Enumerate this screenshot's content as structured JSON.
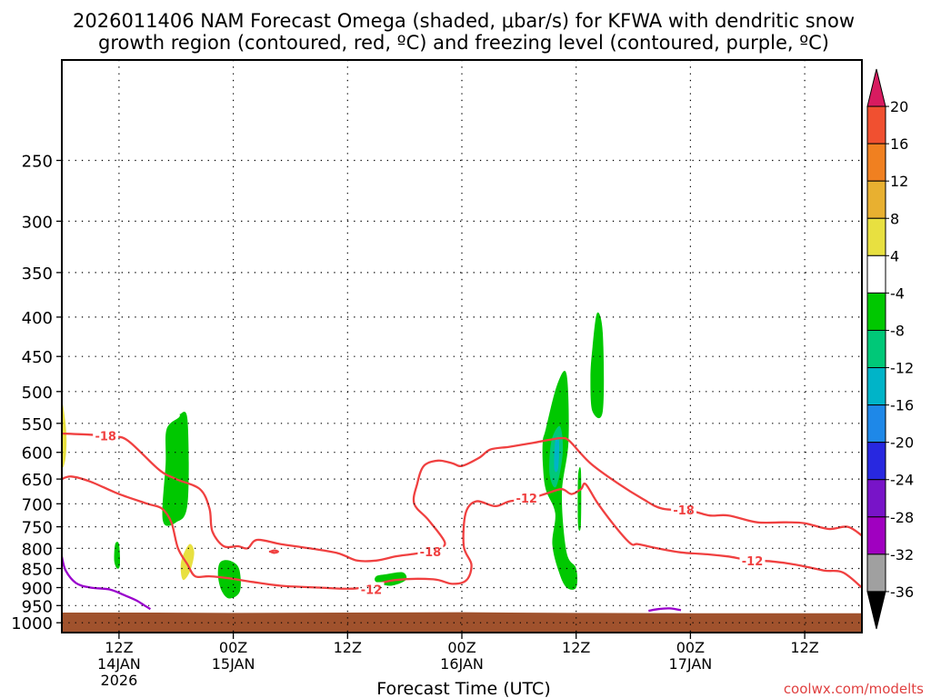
{
  "chart_data": {
    "type": "heatmap",
    "title_line1": "2026011406 NAM Forecast Omega (shaded, μbar/s) for KFWA with dendritic snow",
    "title_line2": "growth region (contoured, red, ºC) and freezing level (contoured, purple, ºC)",
    "xlabel": "Forecast Time (UTC)",
    "watermark": "coolwx.com/modelts",
    "x_unit": "hours_from_2026-01-14T06Z",
    "xlim": [
      0,
      84
    ],
    "y_scale": "log-pressure",
    "ylim": [
      1030,
      185
    ],
    "y_ticks": [
      250,
      300,
      350,
      400,
      450,
      500,
      550,
      600,
      650,
      700,
      750,
      800,
      850,
      900,
      950,
      1000
    ],
    "x_ticks": [
      {
        "x": 6,
        "l1": "12Z",
        "l2": "14JAN",
        "l3": "2026"
      },
      {
        "x": 18,
        "l1": "00Z",
        "l2": "15JAN",
        "l3": ""
      },
      {
        "x": 30,
        "l1": "12Z",
        "l2": "",
        "l3": ""
      },
      {
        "x": 42,
        "l1": "00Z",
        "l2": "16JAN",
        "l3": ""
      },
      {
        "x": 54,
        "l1": "12Z",
        "l2": "",
        "l3": ""
      },
      {
        "x": 66,
        "l1": "00Z",
        "l2": "17JAN",
        "l3": ""
      },
      {
        "x": 78,
        "l1": "12Z",
        "l2": "",
        "l3": ""
      }
    ],
    "colorbar": {
      "labels": [
        "20",
        "16",
        "12",
        "8",
        "4",
        "-4",
        "-8",
        "-12",
        "-16",
        "-20",
        "-24",
        "-28",
        "-32",
        "-36"
      ],
      "bins": [
        {
          "color": "#d81b60"
        },
        {
          "color": "#f05030"
        },
        {
          "color": "#f08020"
        },
        {
          "color": "#e8b030"
        },
        {
          "color": "#e8e040"
        },
        {
          "color": "#ffffff"
        },
        {
          "color": "#00c800"
        },
        {
          "color": "#00c878"
        },
        {
          "color": "#00b4c8"
        },
        {
          "color": "#1e88e8"
        },
        {
          "color": "#2828e0"
        },
        {
          "color": "#7814c8"
        },
        {
          "color": "#a000c0"
        },
        {
          "color": "#a0a0a0"
        },
        {
          "color": "#000000"
        }
      ]
    },
    "ground": {
      "color": "#a0522d",
      "pressure": [
        970,
        970,
        971,
        970,
        969,
        970,
        971,
        972,
        972,
        972
      ],
      "x": [
        0,
        10,
        18,
        30,
        42,
        47,
        55,
        66,
        76,
        84
      ]
    },
    "omega_regions": [
      {
        "value": 6,
        "color": "#e8e040",
        "x": [
          0.0,
          0.35,
          0.5,
          0.35,
          0.0
        ],
        "p": [
          520,
          545,
          580,
          615,
          620
        ]
      },
      {
        "value": 6,
        "color": "#e8e040",
        "x": [
          12.6,
          13.4,
          13.9,
          13.5,
          12.8,
          12.5
        ],
        "p": [
          825,
          790,
          810,
          855,
          880,
          860
        ]
      },
      {
        "value": -6,
        "color": "#00c800",
        "x": [
          11.0,
          12.3,
          12.4,
          13.2,
          13.2,
          12.0,
          10.6,
          10.9
        ],
        "p": [
          560,
          540,
          535,
          545,
          700,
          740,
          735,
          620
        ]
      },
      {
        "value": -6,
        "color": "#00c800",
        "x": [
          5.6,
          6.0,
          6.1,
          5.8,
          5.5
        ],
        "p": [
          790,
          790,
          840,
          850,
          830
        ]
      },
      {
        "value": -6,
        "color": "#00c800",
        "x": [
          16.6,
          17.6,
          18.6,
          18.7,
          17.6,
          16.8,
          16.4
        ],
        "p": [
          835,
          830,
          850,
          910,
          930,
          910,
          870
        ]
      },
      {
        "value": -6,
        "color": "#00c800",
        "x": [
          33.0,
          34.0,
          35.8,
          36.1,
          34.5,
          33.0
        ],
        "p": [
          870,
          865,
          860,
          880,
          895,
          885
        ]
      },
      {
        "value": -6,
        "color": "#00c800",
        "x": [
          50.8,
          52.0,
          53.0,
          53.2,
          52.5,
          53.0,
          54.0,
          54.0,
          53.0,
          52.2,
          51.5,
          51.8,
          50.8,
          50.5,
          50.5
        ],
        "p": [
          560,
          490,
          475,
          580,
          680,
          810,
          850,
          900,
          900,
          860,
          790,
          720,
          670,
          620,
          580
        ]
      },
      {
        "value": -6,
        "color": "#00c800",
        "x": [
          55.7,
          56.2,
          56.8,
          56.8,
          55.7,
          55.5
        ],
        "p": [
          440,
          395,
          420,
          530,
          530,
          480
        ]
      },
      {
        "value": -6,
        "color": "#00c800",
        "x": [
          54.2,
          54.5,
          54.5,
          54.2
        ],
        "p": [
          645,
          635,
          745,
          745
        ]
      },
      {
        "value": -10,
        "color": "#00c878",
        "x": [
          51.4,
          52.3,
          52.6,
          51.9,
          51.2
        ],
        "p": [
          580,
          555,
          600,
          665,
          640
        ]
      },
      {
        "value": -14,
        "color": "#00b4c8",
        "x": [
          51.8,
          52.2,
          52.1,
          51.7
        ],
        "p": [
          580,
          580,
          630,
          630
        ]
      }
    ],
    "contours": [
      {
        "name": "-18",
        "color": "#f04040",
        "x": [
          0,
          3.0,
          5.4,
          7.0,
          10.2,
          12.0,
          14.5,
          15.5,
          15.8,
          17.0,
          18.5,
          19.5,
          20.5,
          23.0,
          26.0,
          29.0,
          31.0,
          33.0,
          35.0,
          36.5,
          38.0,
          39.5,
          40.2,
          38.5,
          37.0,
          37.3,
          38.0,
          39.5,
          41.0,
          42.0,
          43.8,
          45.0,
          47.0,
          49.5,
          51.5,
          52.5,
          53.3,
          55.5,
          58.5,
          61.0,
          63.0,
          66.0,
          68.0,
          70.0,
          73.0,
          76.0,
          78.0,
          80.5,
          82.5,
          84.0
        ],
        "p": [
          567,
          569,
          572,
          580,
          632,
          650,
          670,
          710,
          760,
          795,
          795,
          800,
          780,
          790,
          800,
          812,
          830,
          830,
          820,
          815,
          810,
          800,
          785,
          735,
          700,
          660,
          625,
          615,
          620,
          625,
          610,
          595,
          590,
          583,
          577,
          575,
          580,
          620,
          660,
          690,
          710,
          715,
          725,
          725,
          740,
          740,
          742,
          755,
          750,
          770
        ]
      },
      {
        "name": "-12",
        "color": "#f04040",
        "x": [
          0,
          1.0,
          3.0,
          6.0,
          9.0,
          10.5,
          11.5,
          12.2,
          13.2,
          14.0,
          15.5,
          17.5,
          20.0,
          23.0,
          27.0,
          31.0,
          35.0,
          39.0,
          41.0,
          42.5,
          43.0,
          42.2,
          42.4,
          43.5,
          45.5,
          47.0,
          49.0,
          51.0,
          52.5,
          53.5,
          54.5,
          55.0,
          56.3,
          58.5,
          59.8,
          60.5,
          62.5,
          65.0,
          68.0,
          70.0,
          72.0,
          74.5,
          77.0,
          80.0,
          82.0,
          84.0
        ],
        "p": [
          650,
          645,
          655,
          680,
          700,
          710,
          740,
          800,
          840,
          870,
          870,
          875,
          885,
          895,
          900,
          902,
          880,
          878,
          890,
          880,
          840,
          795,
          720,
          695,
          705,
          695,
          690,
          678,
          670,
          680,
          670,
          660,
          700,
          760,
          790,
          790,
          800,
          810,
          815,
          820,
          828,
          832,
          840,
          855,
          860,
          900
        ]
      },
      {
        "name": "freezing",
        "color": "#9900cc",
        "x": [
          0,
          0.4,
          1.5,
          3.0,
          5.0,
          6.5,
          7.8,
          8.7,
          9.3
        ],
        "p": [
          820,
          855,
          888,
          900,
          905,
          920,
          935,
          950,
          960
        ]
      },
      {
        "name": "freezing",
        "color": "#9900cc",
        "x": [
          61.6,
          62.6,
          63.8,
          65.0
        ],
        "p": [
          965,
          960,
          958,
          963
        ]
      },
      {
        "name": "small",
        "color": "#f04040",
        "x": [
          21.9,
          22.3,
          22.7,
          22.3,
          21.9
        ],
        "p": [
          808,
          805,
          808,
          811,
          808
        ]
      }
    ],
    "contour_labels": [
      {
        "text": "-18",
        "x": 4.6,
        "p": 571
      },
      {
        "text": "-18",
        "x": 38.7,
        "p": 808
      },
      {
        "text": "-18",
        "x": 65.3,
        "p": 713
      },
      {
        "text": "-12",
        "x": 32.5,
        "p": 905
      },
      {
        "text": "-12",
        "x": 48.8,
        "p": 688
      },
      {
        "text": "-12",
        "x": 72.5,
        "p": 830
      }
    ]
  }
}
